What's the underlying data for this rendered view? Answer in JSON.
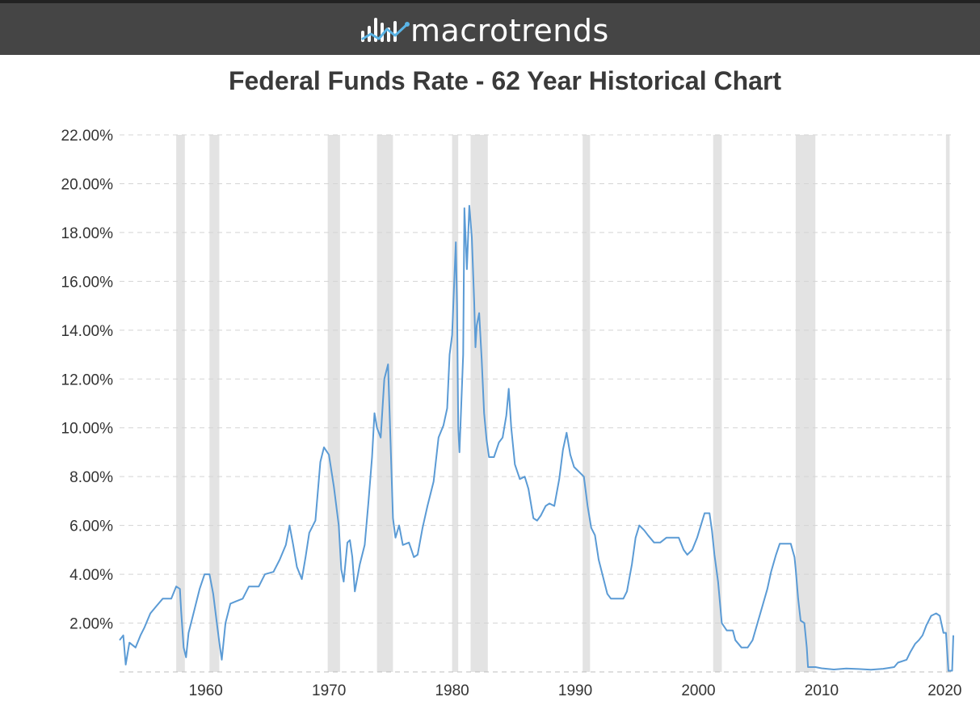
{
  "header": {
    "brand": "macrotrends",
    "logo_icon": "bar-chart-line-logo-icon",
    "background_color": "#454545"
  },
  "chart_data": {
    "type": "line",
    "title": "Federal Funds Rate - 62 Year Historical Chart",
    "xlabel": "",
    "ylabel": "",
    "xlim": [
      1953.0,
      2020.7
    ],
    "ylim": [
      0,
      22
    ],
    "grid": true,
    "legend": "none",
    "y_ticks": [
      {
        "value": 2,
        "label": "2.00%"
      },
      {
        "value": 4,
        "label": "4.00%"
      },
      {
        "value": 6,
        "label": "6.00%"
      },
      {
        "value": 8,
        "label": "8.00%"
      },
      {
        "value": 10,
        "label": "10.00%"
      },
      {
        "value": 12,
        "label": "12.00%"
      },
      {
        "value": 14,
        "label": "14.00%"
      },
      {
        "value": 16,
        "label": "16.00%"
      },
      {
        "value": 18,
        "label": "18.00%"
      },
      {
        "value": 20,
        "label": "20.00%"
      },
      {
        "value": 22,
        "label": "22.00%"
      }
    ],
    "x_ticks": [
      {
        "value": 1960,
        "label": "1960"
      },
      {
        "value": 1970,
        "label": "1970"
      },
      {
        "value": 1980,
        "label": "1980"
      },
      {
        "value": 1990,
        "label": "1990"
      },
      {
        "value": 2000,
        "label": "2000"
      },
      {
        "value": 2010,
        "label": "2010"
      },
      {
        "value": 2020,
        "label": "2020"
      }
    ],
    "recession_shading": [
      [
        1957.6,
        1958.3
      ],
      [
        1960.3,
        1961.1
      ],
      [
        1969.9,
        1970.9
      ],
      [
        1973.9,
        1975.2
      ],
      [
        1980.0,
        1980.5
      ],
      [
        1981.5,
        1982.9
      ],
      [
        1990.6,
        1991.2
      ],
      [
        2001.2,
        2001.9
      ],
      [
        2007.9,
        2009.5
      ],
      [
        2020.1,
        2020.4
      ]
    ],
    "series": [
      {
        "color": "#5b9bd5",
        "points": [
          [
            1953.0,
            1.3
          ],
          [
            1953.3,
            1.5
          ],
          [
            1953.5,
            0.3
          ],
          [
            1953.8,
            1.2
          ],
          [
            1954.3,
            1.0
          ],
          [
            1954.7,
            1.5
          ],
          [
            1955.0,
            1.8
          ],
          [
            1955.5,
            2.4
          ],
          [
            1956.0,
            2.7
          ],
          [
            1956.5,
            3.0
          ],
          [
            1957.2,
            3.0
          ],
          [
            1957.6,
            3.5
          ],
          [
            1957.9,
            3.4
          ],
          [
            1958.0,
            2.5
          ],
          [
            1958.2,
            1.0
          ],
          [
            1958.4,
            0.6
          ],
          [
            1958.6,
            1.6
          ],
          [
            1959.0,
            2.4
          ],
          [
            1959.5,
            3.4
          ],
          [
            1959.9,
            4.0
          ],
          [
            1960.3,
            4.0
          ],
          [
            1960.6,
            3.2
          ],
          [
            1960.9,
            2.0
          ],
          [
            1961.1,
            1.2
          ],
          [
            1961.3,
            0.5
          ],
          [
            1961.6,
            2.0
          ],
          [
            1962.0,
            2.8
          ],
          [
            1962.5,
            2.9
          ],
          [
            1963.0,
            3.0
          ],
          [
            1963.5,
            3.5
          ],
          [
            1964.3,
            3.5
          ],
          [
            1964.8,
            4.0
          ],
          [
            1965.5,
            4.1
          ],
          [
            1966.0,
            4.6
          ],
          [
            1966.5,
            5.2
          ],
          [
            1966.8,
            6.0
          ],
          [
            1967.1,
            5.2
          ],
          [
            1967.4,
            4.3
          ],
          [
            1967.8,
            3.8
          ],
          [
            1968.1,
            4.7
          ],
          [
            1968.4,
            5.7
          ],
          [
            1968.9,
            6.2
          ],
          [
            1969.3,
            8.6
          ],
          [
            1969.6,
            9.2
          ],
          [
            1970.0,
            8.9
          ],
          [
            1970.4,
            7.6
          ],
          [
            1970.8,
            6.0
          ],
          [
            1971.0,
            4.2
          ],
          [
            1971.2,
            3.7
          ],
          [
            1971.5,
            5.3
          ],
          [
            1971.7,
            5.4
          ],
          [
            1971.9,
            4.7
          ],
          [
            1972.1,
            3.3
          ],
          [
            1972.5,
            4.4
          ],
          [
            1972.9,
            5.2
          ],
          [
            1973.2,
            6.9
          ],
          [
            1973.5,
            8.8
          ],
          [
            1973.7,
            10.6
          ],
          [
            1973.9,
            10.0
          ],
          [
            1974.2,
            9.6
          ],
          [
            1974.5,
            12.0
          ],
          [
            1974.8,
            12.6
          ],
          [
            1975.0,
            9.4
          ],
          [
            1975.2,
            6.3
          ],
          [
            1975.4,
            5.5
          ],
          [
            1975.7,
            6.0
          ],
          [
            1976.0,
            5.2
          ],
          [
            1976.5,
            5.3
          ],
          [
            1976.9,
            4.7
          ],
          [
            1977.2,
            4.8
          ],
          [
            1977.6,
            5.9
          ],
          [
            1978.0,
            6.8
          ],
          [
            1978.5,
            7.8
          ],
          [
            1978.9,
            9.6
          ],
          [
            1979.3,
            10.1
          ],
          [
            1979.6,
            10.8
          ],
          [
            1979.8,
            13.0
          ],
          [
            1980.0,
            13.8
          ],
          [
            1980.3,
            17.6
          ],
          [
            1980.4,
            15.0
          ],
          [
            1980.5,
            10.0
          ],
          [
            1980.6,
            9.0
          ],
          [
            1980.9,
            13.0
          ],
          [
            1981.0,
            19.0
          ],
          [
            1981.2,
            16.5
          ],
          [
            1981.4,
            19.1
          ],
          [
            1981.6,
            17.8
          ],
          [
            1981.8,
            15.1
          ],
          [
            1981.9,
            13.3
          ],
          [
            1982.0,
            14.2
          ],
          [
            1982.2,
            14.7
          ],
          [
            1982.4,
            12.8
          ],
          [
            1982.6,
            10.6
          ],
          [
            1982.8,
            9.5
          ],
          [
            1983.0,
            8.8
          ],
          [
            1983.4,
            8.8
          ],
          [
            1983.8,
            9.4
          ],
          [
            1984.1,
            9.6
          ],
          [
            1984.4,
            10.5
          ],
          [
            1984.6,
            11.6
          ],
          [
            1984.8,
            10.0
          ],
          [
            1985.1,
            8.5
          ],
          [
            1985.5,
            7.9
          ],
          [
            1985.9,
            8.0
          ],
          [
            1986.2,
            7.5
          ],
          [
            1986.6,
            6.3
          ],
          [
            1986.9,
            6.2
          ],
          [
            1987.2,
            6.4
          ],
          [
            1987.6,
            6.8
          ],
          [
            1987.9,
            6.9
          ],
          [
            1988.3,
            6.8
          ],
          [
            1988.7,
            7.9
          ],
          [
            1989.0,
            9.1
          ],
          [
            1989.3,
            9.8
          ],
          [
            1989.6,
            8.9
          ],
          [
            1989.9,
            8.4
          ],
          [
            1990.3,
            8.2
          ],
          [
            1990.7,
            8.0
          ],
          [
            1991.0,
            6.8
          ],
          [
            1991.3,
            5.9
          ],
          [
            1991.6,
            5.6
          ],
          [
            1991.9,
            4.6
          ],
          [
            1992.2,
            4.0
          ],
          [
            1992.6,
            3.2
          ],
          [
            1992.9,
            3.0
          ],
          [
            1993.5,
            3.0
          ],
          [
            1993.9,
            3.0
          ],
          [
            1994.2,
            3.3
          ],
          [
            1994.6,
            4.4
          ],
          [
            1994.9,
            5.5
          ],
          [
            1995.2,
            6.0
          ],
          [
            1995.6,
            5.8
          ],
          [
            1995.9,
            5.6
          ],
          [
            1996.4,
            5.3
          ],
          [
            1996.9,
            5.3
          ],
          [
            1997.4,
            5.5
          ],
          [
            1997.9,
            5.5
          ],
          [
            1998.4,
            5.5
          ],
          [
            1998.8,
            5.0
          ],
          [
            1999.1,
            4.8
          ],
          [
            1999.5,
            5.0
          ],
          [
            1999.9,
            5.5
          ],
          [
            2000.2,
            6.0
          ],
          [
            2000.5,
            6.5
          ],
          [
            2000.9,
            6.5
          ],
          [
            2001.1,
            5.8
          ],
          [
            2001.3,
            4.8
          ],
          [
            2001.6,
            3.7
          ],
          [
            2001.9,
            2.0
          ],
          [
            2002.3,
            1.7
          ],
          [
            2002.8,
            1.7
          ],
          [
            2003.0,
            1.3
          ],
          [
            2003.5,
            1.0
          ],
          [
            2004.0,
            1.0
          ],
          [
            2004.4,
            1.3
          ],
          [
            2004.8,
            2.0
          ],
          [
            2005.2,
            2.7
          ],
          [
            2005.6,
            3.4
          ],
          [
            2005.9,
            4.1
          ],
          [
            2006.3,
            4.8
          ],
          [
            2006.6,
            5.25
          ],
          [
            2007.0,
            5.25
          ],
          [
            2007.5,
            5.25
          ],
          [
            2007.8,
            4.7
          ],
          [
            2007.9,
            4.2
          ],
          [
            2008.1,
            3.0
          ],
          [
            2008.3,
            2.1
          ],
          [
            2008.6,
            2.0
          ],
          [
            2008.8,
            1.0
          ],
          [
            2008.9,
            0.2
          ],
          [
            2009.5,
            0.2
          ],
          [
            2010.0,
            0.15
          ],
          [
            2011.0,
            0.1
          ],
          [
            2012.0,
            0.14
          ],
          [
            2013.0,
            0.12
          ],
          [
            2014.0,
            0.09
          ],
          [
            2015.0,
            0.13
          ],
          [
            2015.9,
            0.2
          ],
          [
            2016.2,
            0.38
          ],
          [
            2016.9,
            0.5
          ],
          [
            2017.2,
            0.8
          ],
          [
            2017.6,
            1.15
          ],
          [
            2017.9,
            1.3
          ],
          [
            2018.2,
            1.5
          ],
          [
            2018.5,
            1.9
          ],
          [
            2018.9,
            2.3
          ],
          [
            2019.3,
            2.4
          ],
          [
            2019.6,
            2.3
          ],
          [
            2019.9,
            1.6
          ],
          [
            2020.1,
            1.6
          ],
          [
            2020.3,
            0.05
          ],
          [
            2020.45,
            0.05
          ],
          [
            2020.6,
            0.05
          ],
          [
            2020.7,
            1.5
          ]
        ]
      }
    ]
  }
}
